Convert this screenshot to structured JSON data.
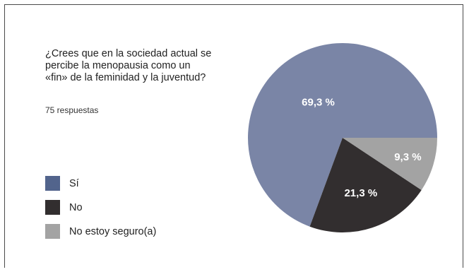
{
  "chart_data": {
    "type": "pie",
    "title": "¿Crees que en la sociedad actual se\npercibe la menopausia como un\n«fin» de la feminidad y la juventud?",
    "subtitle": "75 respuestas",
    "slices": [
      {
        "name": "Sí",
        "value": 69.3,
        "label": "69,3 %",
        "color": "#7a85a6",
        "label_color": "#ffffff"
      },
      {
        "name": "No",
        "value": 21.3,
        "label": "21,3 %",
        "color": "#322e2f",
        "label_color": "#ffffff"
      },
      {
        "name": "No estoy seguro(a)",
        "value": 9.3,
        "label": "9,3 %",
        "color": "#a3a3a3",
        "label_color": "#ffffff"
      }
    ],
    "start": "3 o'clock",
    "direction": "counter-clockwise",
    "legend_position": "bottom-left",
    "legend_swatch_colors": [
      "#52648c",
      "#322e2f",
      "#a3a3a3"
    ]
  }
}
